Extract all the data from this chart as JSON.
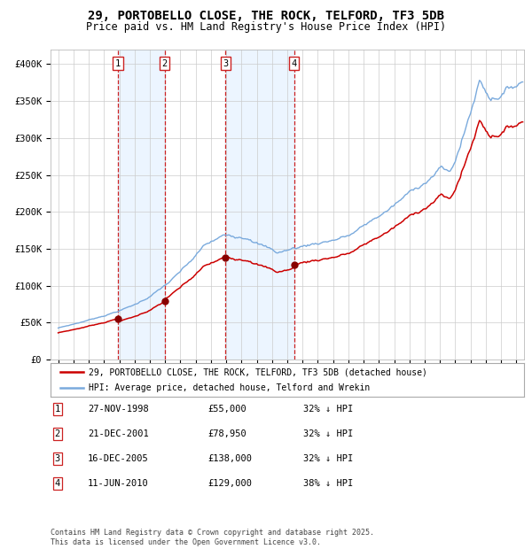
{
  "title": "29, PORTOBELLO CLOSE, THE ROCK, TELFORD, TF3 5DB",
  "subtitle": "Price paid vs. HM Land Registry's House Price Index (HPI)",
  "title_fontsize": 10,
  "subtitle_fontsize": 8.5,
  "background_color": "#ffffff",
  "plot_bg_color": "#ffffff",
  "grid_color": "#cccccc",
  "ylim": [
    0,
    420000
  ],
  "xlim_start": 1994.5,
  "xlim_end": 2025.5,
  "yticks": [
    0,
    50000,
    100000,
    150000,
    200000,
    250000,
    300000,
    350000,
    400000
  ],
  "ytick_labels": [
    "£0",
    "£50K",
    "£100K",
    "£150K",
    "£200K",
    "£250K",
    "£300K",
    "£350K",
    "£400K"
  ],
  "sale_dates": [
    1998.9,
    2001.97,
    2005.96,
    2010.44
  ],
  "sale_prices": [
    55000,
    78950,
    138000,
    129000
  ],
  "sale_labels": [
    "1",
    "2",
    "3",
    "4"
  ],
  "vline_color": "#cc2222",
  "vshade_color": "#ddeeff",
  "vshade_alpha": 0.55,
  "red_line_color": "#cc0000",
  "blue_line_color": "#7aaadd",
  "marker_color": "#880000",
  "legend_label_red": "29, PORTOBELLO CLOSE, THE ROCK, TELFORD, TF3 5DB (detached house)",
  "legend_label_blue": "HPI: Average price, detached house, Telford and Wrekin",
  "table_rows": [
    {
      "num": "1",
      "date": "27-NOV-1998",
      "price": "£55,000",
      "pct": "32% ↓ HPI"
    },
    {
      "num": "2",
      "date": "21-DEC-2001",
      "price": "£78,950",
      "pct": "32% ↓ HPI"
    },
    {
      "num": "3",
      "date": "16-DEC-2005",
      "price": "£138,000",
      "pct": "32% ↓ HPI"
    },
    {
      "num": "4",
      "date": "11-JUN-2010",
      "price": "£129,000",
      "pct": "38% ↓ HPI"
    }
  ],
  "footnote": "Contains HM Land Registry data © Crown copyright and database right 2025.\nThis data is licensed under the Open Government Licence v3.0.",
  "xtick_years": [
    1995,
    1996,
    1997,
    1998,
    1999,
    2000,
    2001,
    2002,
    2003,
    2004,
    2005,
    2006,
    2007,
    2008,
    2009,
    2010,
    2011,
    2012,
    2013,
    2014,
    2015,
    2016,
    2017,
    2018,
    2019,
    2020,
    2021,
    2022,
    2023,
    2024,
    2025
  ]
}
